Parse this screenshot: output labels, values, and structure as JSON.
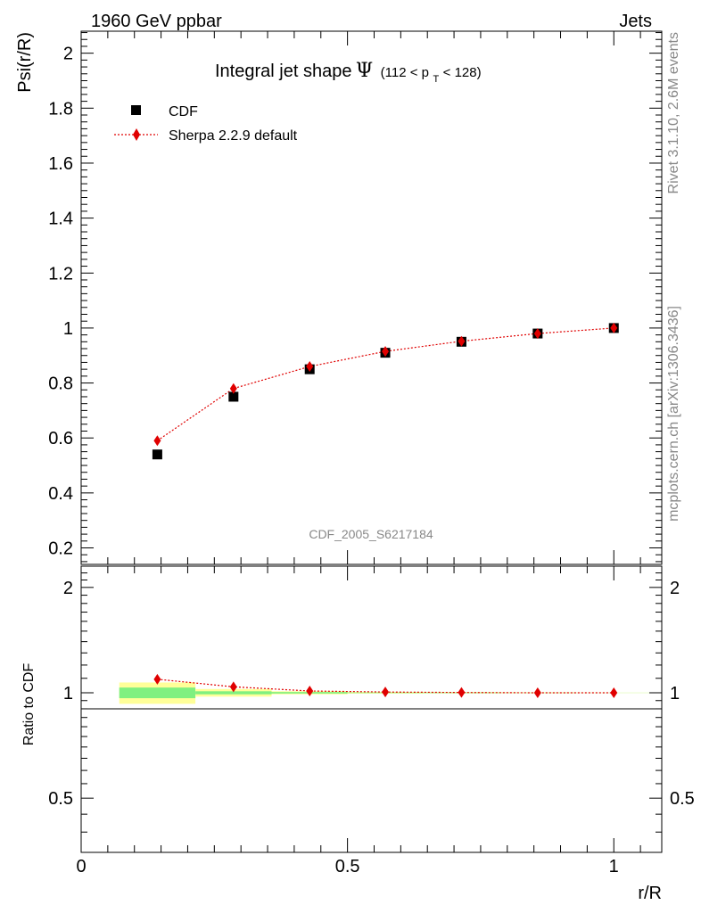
{
  "header": {
    "left": "1960 GeV ppbar",
    "right": "Jets"
  },
  "side_text": {
    "rivet": "Rivet 3.1.10,  2.6M events",
    "mcplots": "mcplots.cern.ch [arXiv:1306.3436]"
  },
  "plot_title": {
    "main": "Integral jet shape",
    "psi": "Ψ",
    "range_open": "(112 < p",
    "range_sub": "T",
    "range_close": " < 128)"
  },
  "watermark": "CDF_2005_S6217184",
  "legend": {
    "data_label": "CDF",
    "mc_label": "Sherpa 2.2.9 default"
  },
  "colors": {
    "data": "#000000",
    "mc": "#e00000",
    "band_inner": "#80f080",
    "band_outer": "#ffff99"
  },
  "chart_data": [
    {
      "type": "scatter",
      "ylabel": "Psi(r/R)",
      "xlim": [
        0,
        1.09
      ],
      "ylim": [
        0.14,
        2.08
      ],
      "y_ticks": [
        "0.2",
        "0.4",
        "0.6",
        "0.8",
        "1",
        "1.2",
        "1.4",
        "1.6",
        "1.8",
        "2"
      ],
      "series": [
        {
          "name": "CDF",
          "x": [
            0.143,
            0.286,
            0.429,
            0.571,
            0.714,
            0.857,
            1.0
          ],
          "values": [
            0.54,
            0.75,
            0.85,
            0.91,
            0.95,
            0.98,
            1.0
          ]
        },
        {
          "name": "Sherpa 2.2.9 default",
          "x": [
            0.143,
            0.286,
            0.429,
            0.571,
            0.714,
            0.857,
            1.0
          ],
          "values": [
            0.59,
            0.78,
            0.86,
            0.915,
            0.952,
            0.98,
            1.0
          ]
        }
      ]
    },
    {
      "type": "scatter",
      "ylabel": "Ratio to CDF",
      "xlabel": "r/R",
      "xlim": [
        0,
        1.09
      ],
      "log_y": true,
      "ylim": [
        0.35,
        2.3
      ],
      "y_ticks": [
        "0.5",
        "1",
        "2"
      ],
      "x_ticks": [
        "0",
        "0.5",
        "1"
      ],
      "band": [
        {
          "x": [
            0.0715,
            0.2145
          ],
          "outer": [
            0.93,
            1.07
          ],
          "inner": [
            0.965,
            1.035
          ]
        },
        {
          "x": [
            0.2145,
            0.3575
          ],
          "outer": [
            0.975,
            1.025
          ],
          "inner": [
            0.99,
            1.01
          ]
        },
        {
          "x": [
            0.3575,
            0.5
          ],
          "outer": [
            0.99,
            1.01
          ],
          "inner": [
            0.995,
            1.005
          ]
        },
        {
          "x": [
            0.5,
            0.6435
          ],
          "outer": [
            0.995,
            1.005
          ],
          "inner": [
            0.998,
            1.002
          ]
        },
        {
          "x": [
            0.6435,
            0.7865
          ],
          "outer": [
            0.996,
            1.004
          ],
          "inner": [
            0.998,
            1.002
          ]
        },
        {
          "x": [
            0.7865,
            0.93
          ],
          "outer": [
            0.997,
            1.003
          ],
          "inner": [
            0.999,
            1.001
          ]
        },
        {
          "x": [
            0.93,
            1.0715
          ],
          "outer": [
            0.999,
            1.001
          ],
          "inner": [
            0.9995,
            1.0005
          ]
        }
      ],
      "series": [
        {
          "name": "Sherpa 2.2.9 default",
          "x": [
            0.143,
            0.286,
            0.429,
            0.571,
            0.714,
            0.857,
            1.0
          ],
          "values": [
            1.093,
            1.04,
            1.012,
            1.005,
            1.002,
            1.0,
            1.0
          ]
        }
      ]
    }
  ]
}
